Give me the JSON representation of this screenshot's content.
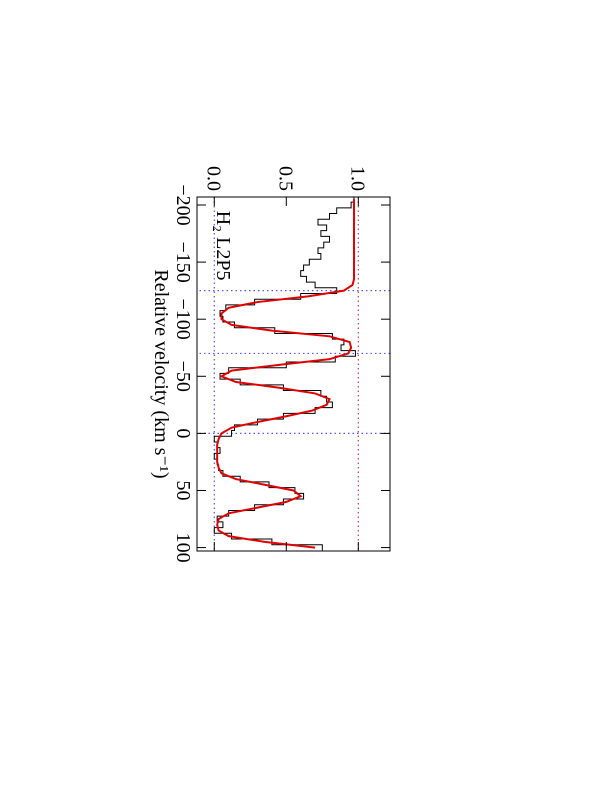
{
  "chart_data": {
    "type": "line",
    "annotation": "H₂ L2P5",
    "xlabel": "Relative velocity (km s⁻¹)",
    "x": [
      -205,
      -200,
      -195,
      -190,
      -185,
      -180,
      -175,
      -170,
      -165,
      -160,
      -155,
      -150,
      -145,
      -140,
      -135,
      -130,
      -125,
      -120,
      -115,
      -110,
      -105,
      -100,
      -95,
      -90,
      -85,
      -80,
      -75,
      -70,
      -65,
      -60,
      -55,
      -50,
      -45,
      -40,
      -35,
      -30,
      -25,
      -20,
      -15,
      -10,
      -5,
      0,
      5,
      10,
      15,
      20,
      25,
      30,
      35,
      40,
      45,
      50,
      55,
      60,
      65,
      70,
      75,
      80,
      85,
      90,
      95,
      100
    ],
    "series": [
      {
        "name": "data",
        "color": "#000000",
        "step": true,
        "values": [
          0.97,
          0.95,
          0.85,
          0.8,
          0.72,
          0.78,
          0.74,
          0.8,
          0.76,
          0.72,
          0.74,
          0.66,
          0.62,
          0.6,
          0.64,
          0.7,
          0.85,
          0.6,
          0.28,
          0.08,
          0.04,
          0.06,
          0.14,
          0.42,
          0.82,
          0.9,
          0.88,
          0.98,
          0.84,
          0.5,
          0.1,
          0.04,
          0.18,
          0.48,
          0.74,
          0.78,
          0.82,
          0.7,
          0.48,
          0.3,
          0.14,
          0.12,
          0.0,
          0.02,
          0.04,
          0.0,
          0.02,
          0.03,
          0.06,
          0.18,
          0.38,
          0.56,
          0.62,
          0.48,
          0.28,
          0.1,
          0.02,
          0.06,
          0.0,
          0.12,
          0.4,
          0.75
        ]
      },
      {
        "name": "model",
        "color": "#e00000",
        "step": false,
        "values": [
          0.97,
          0.97,
          0.97,
          0.97,
          0.97,
          0.97,
          0.97,
          0.97,
          0.97,
          0.97,
          0.97,
          0.97,
          0.97,
          0.97,
          0.97,
          0.96,
          0.9,
          0.65,
          0.3,
          0.1,
          0.05,
          0.05,
          0.12,
          0.4,
          0.8,
          0.94,
          0.95,
          0.93,
          0.8,
          0.45,
          0.12,
          0.05,
          0.15,
          0.45,
          0.7,
          0.8,
          0.78,
          0.68,
          0.5,
          0.3,
          0.12,
          0.05,
          0.03,
          0.02,
          0.02,
          0.02,
          0.02,
          0.03,
          0.05,
          0.15,
          0.35,
          0.55,
          0.6,
          0.5,
          0.3,
          0.1,
          0.03,
          0.02,
          0.03,
          0.1,
          0.35,
          0.7
        ]
      }
    ],
    "vlines": [
      -125,
      -70,
      0
    ],
    "hlines": [
      0,
      1
    ],
    "xlim": [
      -207,
      103
    ],
    "ylim": [
      -0.12,
      1.22
    ],
    "xticks": [
      {
        "value": -200,
        "label": "−200"
      },
      {
        "value": -150,
        "label": "−150"
      },
      {
        "value": -100,
        "label": "−100"
      },
      {
        "value": -50,
        "label": "−50"
      },
      0,
      50,
      100
    ],
    "yticks": [
      {
        "value": 0,
        "label": "0.0"
      },
      0.5,
      {
        "value": 1,
        "label": "1.0"
      }
    ]
  }
}
